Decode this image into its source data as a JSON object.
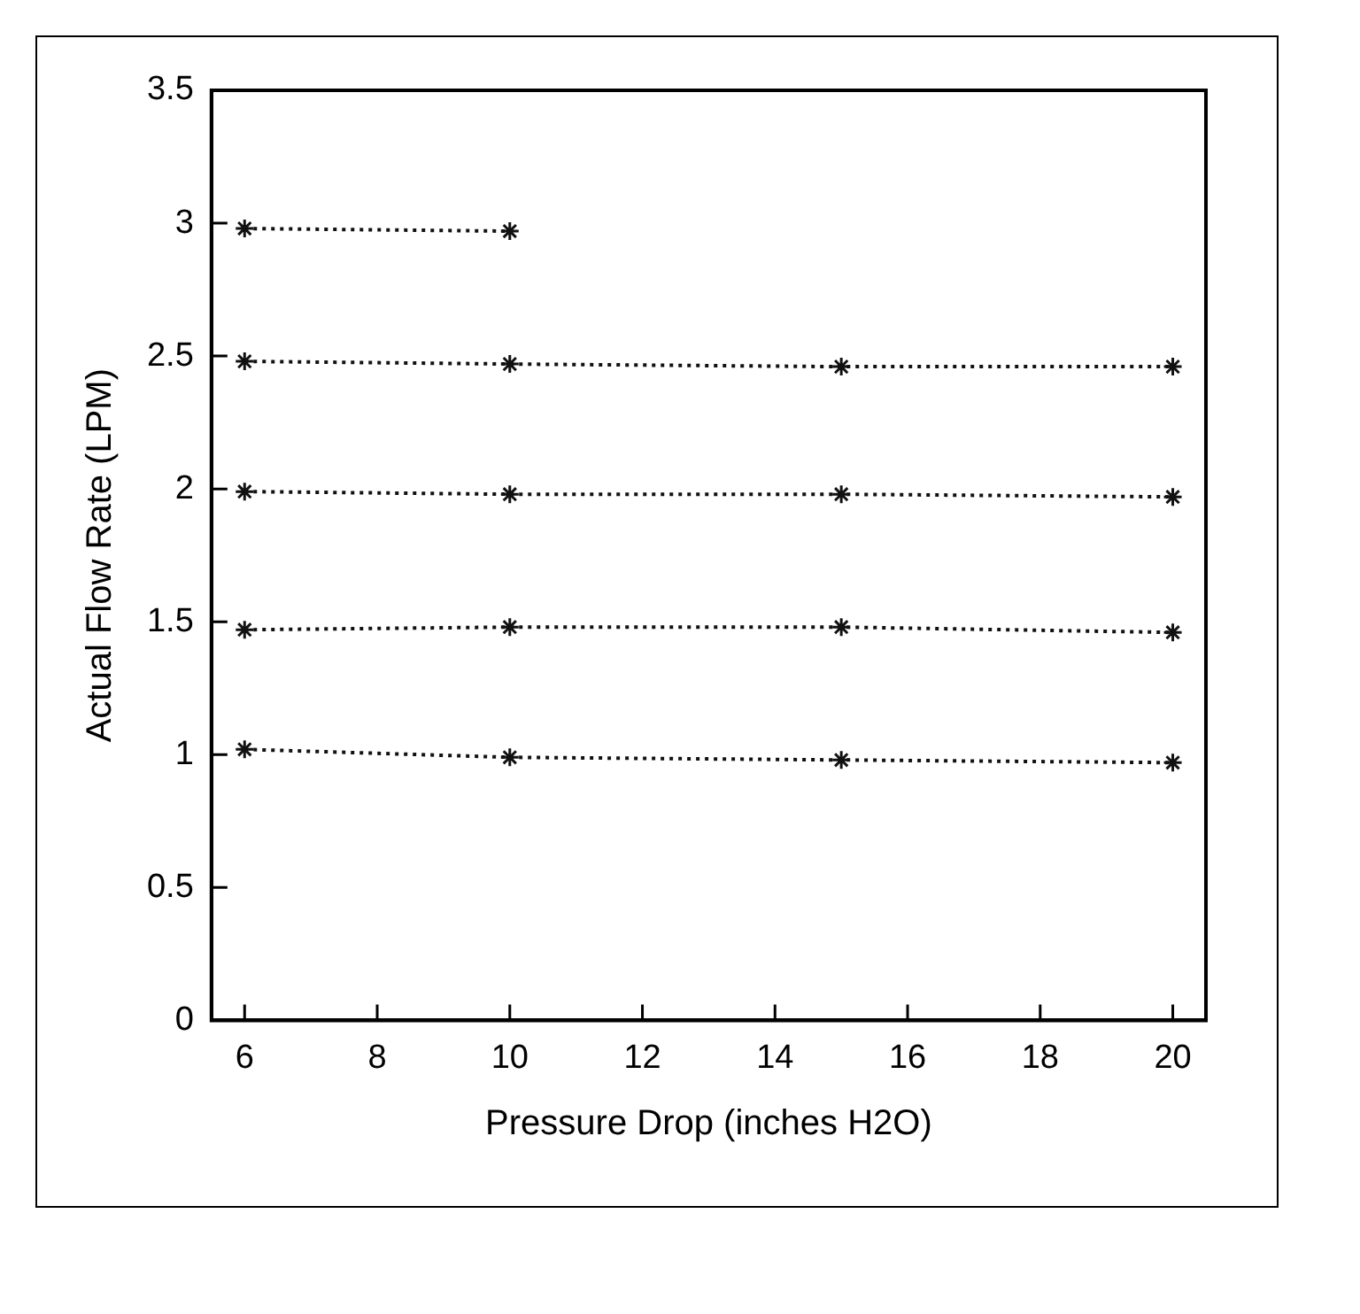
{
  "chart_data": {
    "type": "line",
    "xlabel": "Pressure Drop (inches H2O)",
    "ylabel": "Actual Flow Rate (LPM)",
    "xlim": [
      5.5,
      20.5
    ],
    "xticks": [
      6,
      8,
      10,
      12,
      14,
      16,
      18,
      20
    ],
    "ylim": [
      0,
      3.5
    ],
    "yticks": [
      0,
      0.5,
      1,
      1.5,
      2,
      2.5,
      3,
      3.5
    ],
    "grid": false,
    "legend": false,
    "marker": "cross",
    "line_style": "dotted",
    "series": [
      {
        "color": "#111111",
        "x": [
          6,
          10
        ],
        "values": [
          2.98,
          2.97
        ]
      },
      {
        "color": "#111111",
        "x": [
          6,
          10,
          15,
          20
        ],
        "values": [
          2.48,
          2.47,
          2.46,
          2.46
        ]
      },
      {
        "color": "#111111",
        "x": [
          6,
          10,
          15,
          20
        ],
        "values": [
          1.99,
          1.98,
          1.98,
          1.97
        ]
      },
      {
        "color": "#111111",
        "x": [
          6,
          10,
          15,
          20
        ],
        "values": [
          1.47,
          1.48,
          1.48,
          1.46
        ]
      },
      {
        "color": "#111111",
        "x": [
          6,
          10,
          15,
          20
        ],
        "values": [
          1.02,
          0.99,
          0.98,
          0.97
        ]
      }
    ]
  }
}
